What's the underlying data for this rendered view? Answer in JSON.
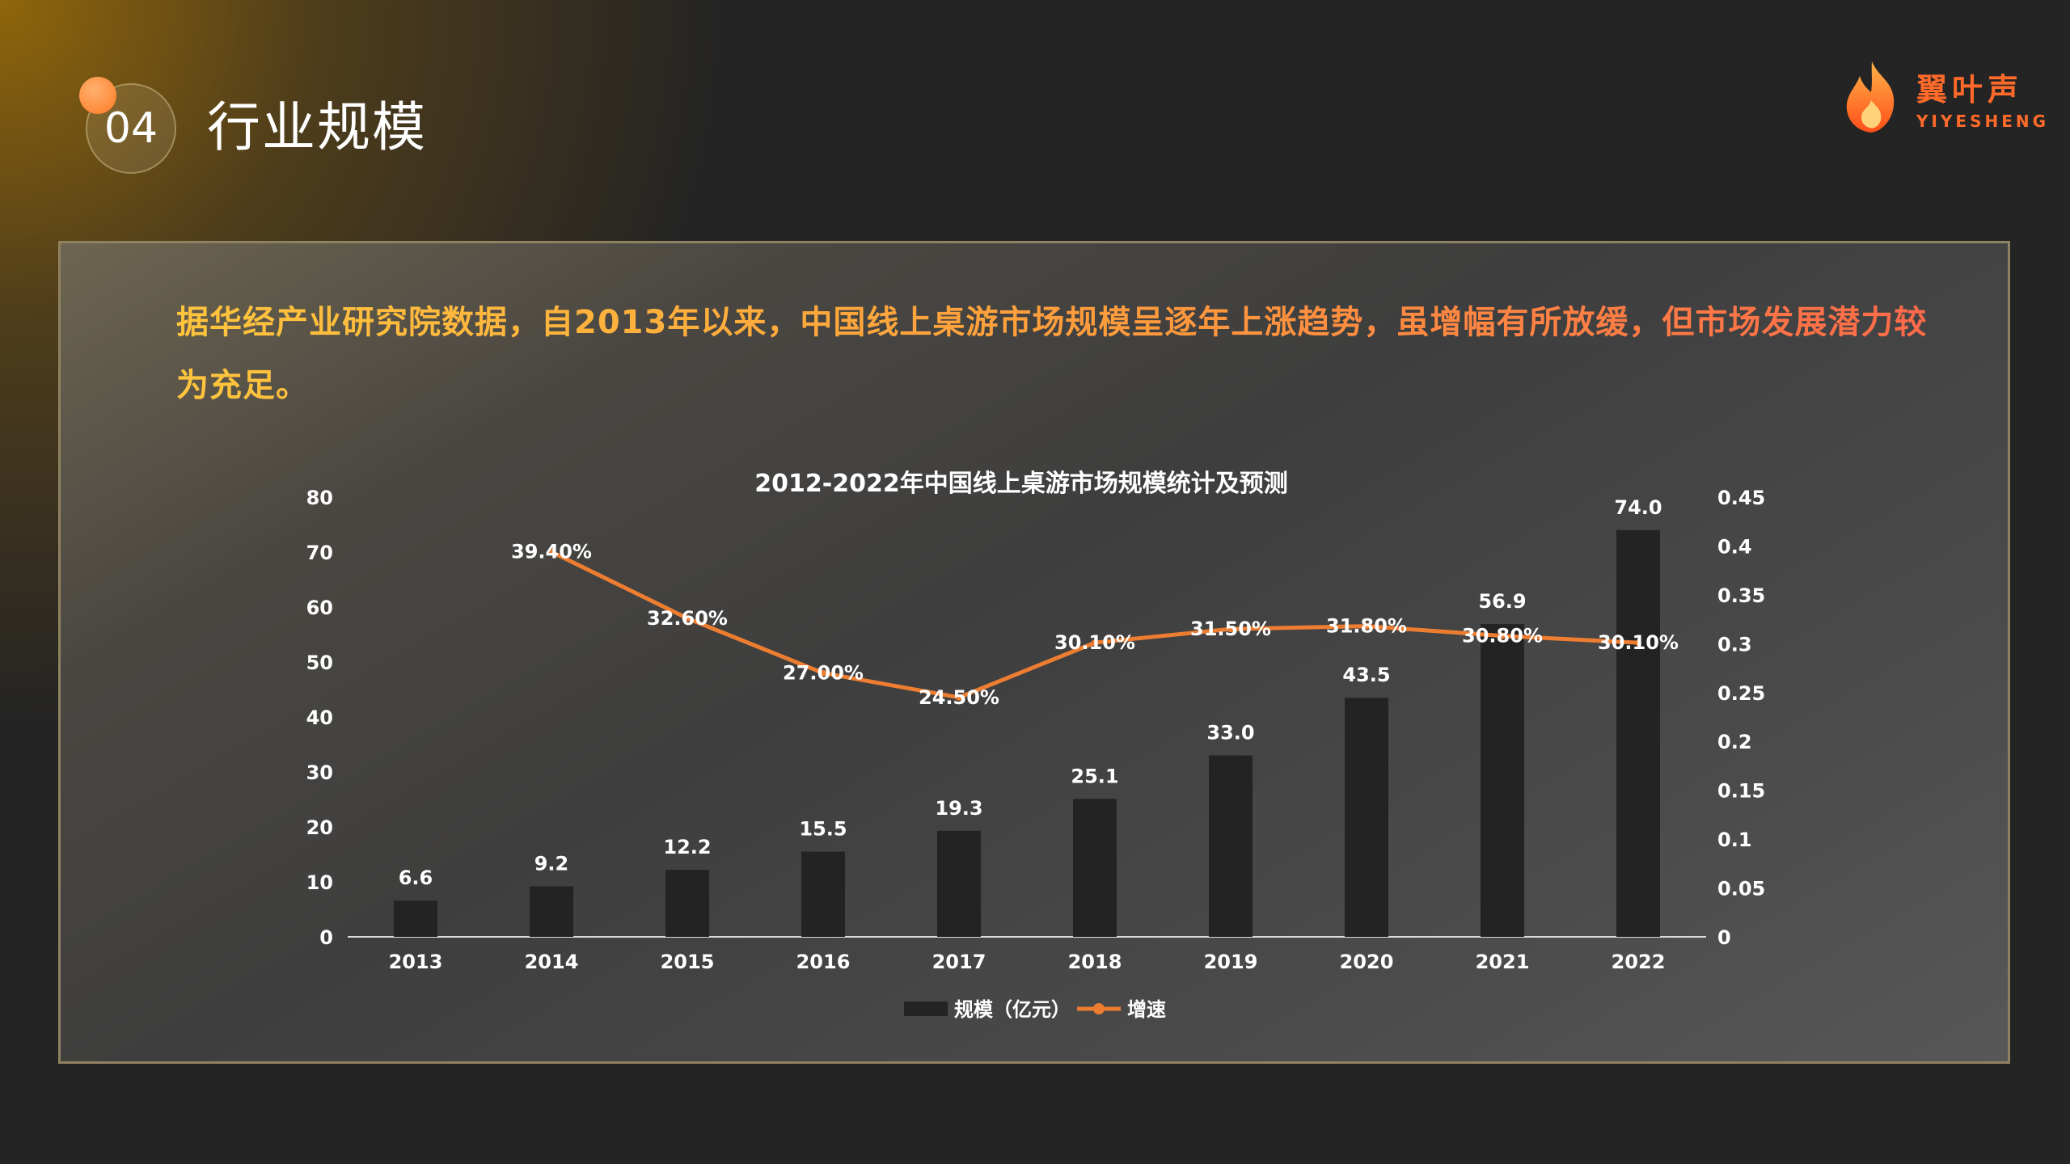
{
  "header": {
    "section_number": "04",
    "title": "行业规模"
  },
  "logo": {
    "name": "翼叶声",
    "sub": "YIYESHENG",
    "icon": "flame-icon"
  },
  "summary": "据华经产业研究院数据，自2013年以来，中国线上桌游市场规模呈逐年上涨趋势，虽增幅有所放缓，但市场发展潜力较为充足。",
  "colors": {
    "accent": "#ff8c3a",
    "bar": "#232323",
    "line": "#ed7d31",
    "panel_border": "#8f8261"
  },
  "chart_data": {
    "type": "bar",
    "title": "2012-2022年中国线上桌游市场规模统计及预测",
    "categories": [
      "2013",
      "2014",
      "2015",
      "2016",
      "2017",
      "2018",
      "2019",
      "2020",
      "2021",
      "2022"
    ],
    "series": [
      {
        "name": "规模（亿元）",
        "type": "bar",
        "axis": "left",
        "values": [
          6.6,
          9.2,
          12.2,
          15.5,
          19.3,
          25.1,
          33.0,
          43.5,
          56.9,
          74.0
        ],
        "labels": [
          "6.6",
          "9.2",
          "12.2",
          "15.5",
          "19.3",
          "25.1",
          "33.0",
          "43.5",
          "56.9",
          "74.0"
        ]
      },
      {
        "name": "增速",
        "type": "line",
        "axis": "right",
        "values": [
          null,
          0.394,
          0.326,
          0.27,
          0.245,
          0.301,
          0.315,
          0.318,
          0.308,
          0.301
        ],
        "labels": [
          "",
          "39.40%",
          "32.60%",
          "27.00%",
          "24.50%",
          "30.10%",
          "31.50%",
          "31.80%",
          "30.80%",
          "30.10%"
        ]
      }
    ],
    "y_left": {
      "min": 0,
      "max": 80,
      "ticks": [
        "0",
        "10",
        "20",
        "30",
        "40",
        "50",
        "60",
        "70",
        "80"
      ]
    },
    "y_right": {
      "min": 0,
      "max": 0.45,
      "ticks": [
        "0",
        "0.05",
        "0.1",
        "0.15",
        "0.2",
        "0.25",
        "0.3",
        "0.35",
        "0.4",
        "0.45"
      ]
    },
    "legend": "bottom",
    "grid": false
  }
}
